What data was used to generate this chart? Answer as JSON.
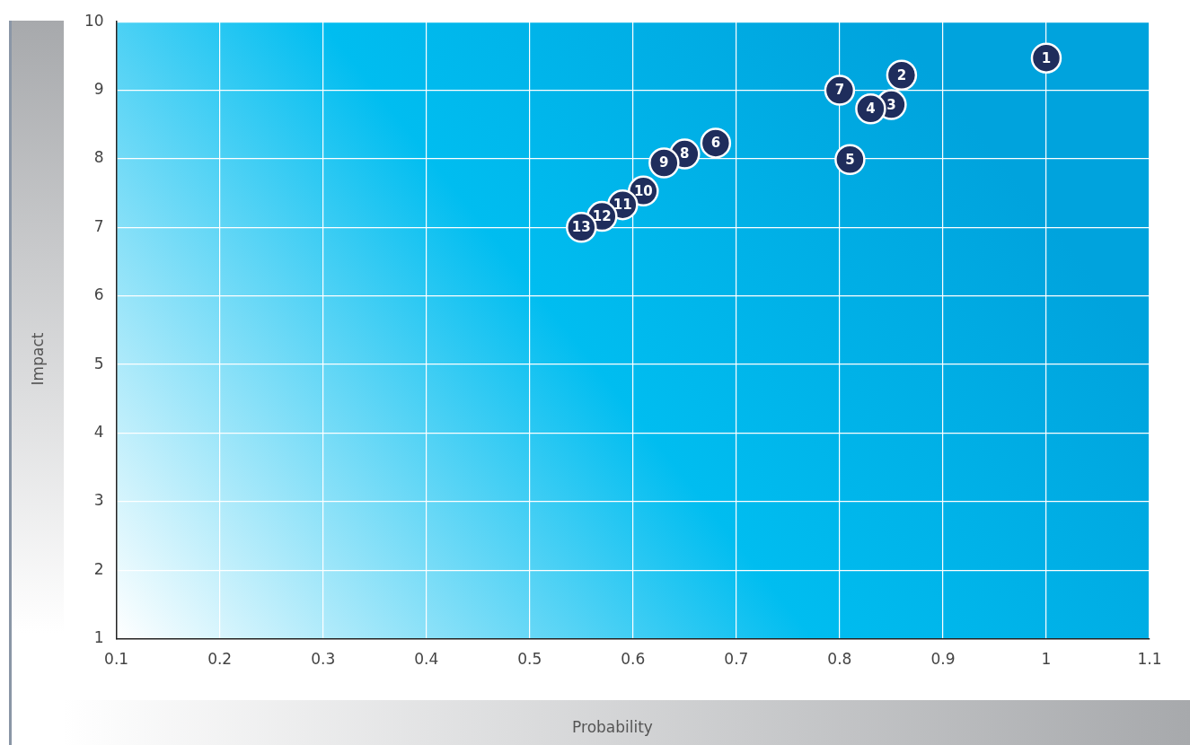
{
  "chart_data": {
    "type": "scatter",
    "xlabel": "Probability",
    "ylabel": "Impact",
    "x": [
      1.0,
      0.86,
      0.85,
      0.83,
      0.81,
      0.68,
      0.8,
      0.65,
      0.63,
      0.61,
      0.59,
      0.57,
      0.55
    ],
    "series": [
      {
        "color": "#1f2d5c",
        "values": [
          9.47,
          9.22,
          8.79,
          8.73,
          7.99,
          8.23,
          9.0,
          8.07,
          7.94,
          7.53,
          7.33,
          7.16,
          7.0
        ]
      }
    ],
    "annotations": [
      {
        "text": "1",
        "x": 1.0,
        "y": 9.47
      },
      {
        "text": "2",
        "x": 0.86,
        "y": 9.22
      },
      {
        "text": "3",
        "x": 0.85,
        "y": 8.79
      },
      {
        "text": "4",
        "x": 0.83,
        "y": 8.73
      },
      {
        "text": "5",
        "x": 0.81,
        "y": 7.99
      },
      {
        "text": "6",
        "x": 0.68,
        "y": 8.23
      },
      {
        "text": "7",
        "x": 0.8,
        "y": 9.0
      },
      {
        "text": "8",
        "x": 0.65,
        "y": 8.07
      },
      {
        "text": "9",
        "x": 0.63,
        "y": 7.94
      },
      {
        "text": "10",
        "x": 0.61,
        "y": 7.53
      },
      {
        "text": "11",
        "x": 0.59,
        "y": 7.33
      },
      {
        "text": "12",
        "x": 0.57,
        "y": 7.16
      },
      {
        "text": "13",
        "x": 0.55,
        "y": 7.0
      }
    ],
    "xlim": [
      0.1,
      1.1
    ],
    "xticks": [
      0.1,
      0.2,
      0.3,
      0.4,
      0.5,
      0.6,
      0.7,
      0.8,
      0.9,
      {
        "value": 1.0,
        "label": "1"
      },
      1.1
    ],
    "ylim": [
      1,
      10
    ],
    "yticks": [
      1,
      2,
      3,
      4,
      5,
      6,
      7,
      8,
      9,
      10
    ],
    "grid": true,
    "legend": false,
    "marker": "circle"
  }
}
